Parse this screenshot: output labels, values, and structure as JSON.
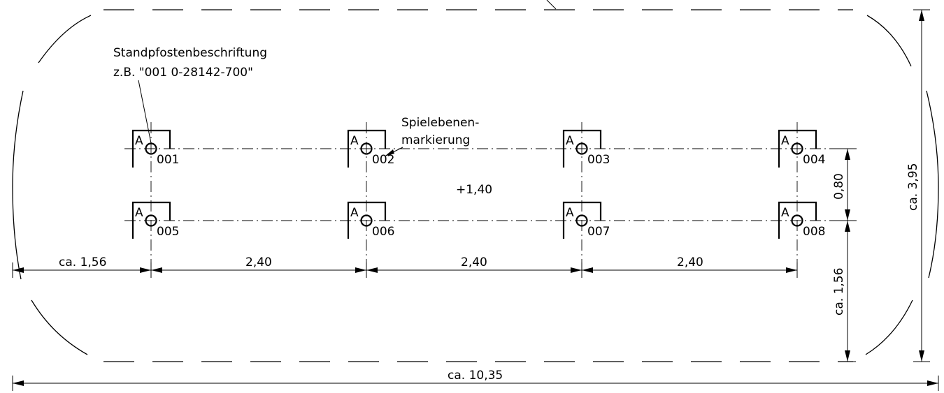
{
  "annotations": {
    "label_callout_line1": "Standpfostenbeschriftung",
    "label_callout_line2": "z.B. \"001  0-28142-700\"",
    "level_marker_line1": "Spielebenen-",
    "level_marker_line2": "markierung",
    "level_value": "+1,40"
  },
  "posts": [
    {
      "letter": "A",
      "id": "001"
    },
    {
      "letter": "A",
      "id": "002"
    },
    {
      "letter": "A",
      "id": "003"
    },
    {
      "letter": "A",
      "id": "004"
    },
    {
      "letter": "A",
      "id": "005"
    },
    {
      "letter": "A",
      "id": "006"
    },
    {
      "letter": "A",
      "id": "007"
    },
    {
      "letter": "A",
      "id": "008"
    }
  ],
  "dimensions": {
    "left_offset": "ca. 1,56",
    "spacing_1": "2,40",
    "spacing_2": "2,40",
    "spacing_3": "2,40",
    "total_length": "ca. 10,35",
    "row_spacing": "0,80",
    "bottom_offset": "ca. 1,56",
    "total_width": "ca. 3,95"
  }
}
